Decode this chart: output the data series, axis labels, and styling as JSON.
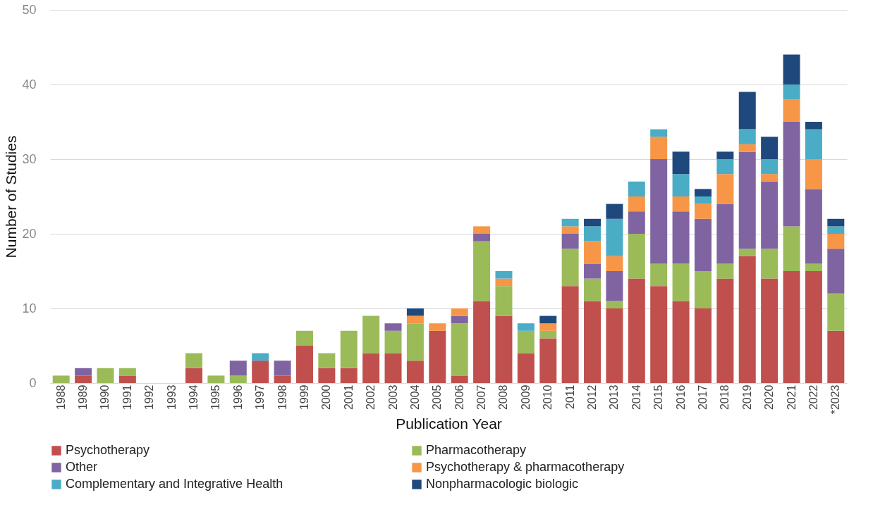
{
  "chart_data": {
    "type": "bar",
    "stacked": true,
    "xlabel": "Publication Year",
    "ylabel": "Number of Studies",
    "categories": [
      "1988",
      "1989",
      "1990",
      "1991",
      "1992",
      "1993",
      "1994",
      "1995",
      "1996",
      "1997",
      "1998",
      "1999",
      "2000",
      "2001",
      "2002",
      "2003",
      "2004",
      "2005",
      "2006",
      "2007",
      "2008",
      "2009",
      "2010",
      "2011",
      "2012",
      "2013",
      "2014",
      "2015",
      "2016",
      "2017",
      "2018",
      "2019",
      "2020",
      "2021",
      "2022",
      "*2023"
    ],
    "series": [
      {
        "name": "Psychotherapy",
        "color": "#c0504d",
        "values": [
          0,
          1,
          0,
          1,
          0,
          0,
          2,
          0,
          0,
          3,
          1,
          5,
          2,
          2,
          4,
          4,
          3,
          7,
          1,
          11,
          9,
          4,
          6,
          13,
          11,
          10,
          14,
          13,
          11,
          10,
          14,
          17,
          14,
          15,
          15,
          7
        ]
      },
      {
        "name": "Pharmacotherapy",
        "color": "#9bbb59",
        "values": [
          1,
          0,
          2,
          1,
          0,
          0,
          2,
          1,
          1,
          0,
          0,
          2,
          2,
          5,
          5,
          3,
          5,
          0,
          7,
          8,
          4,
          3,
          1,
          5,
          3,
          1,
          6,
          3,
          5,
          5,
          2,
          1,
          4,
          6,
          1,
          5
        ]
      },
      {
        "name": "Other",
        "color": "#8064a2",
        "values": [
          0,
          1,
          0,
          0,
          0,
          0,
          0,
          0,
          2,
          0,
          2,
          0,
          0,
          0,
          0,
          1,
          0,
          0,
          1,
          1,
          0,
          0,
          0,
          2,
          2,
          4,
          3,
          14,
          7,
          7,
          8,
          13,
          9,
          14,
          10,
          6
        ]
      },
      {
        "name": "Psychotherapy & pharmacotherapy",
        "color": "#f79646",
        "values": [
          0,
          0,
          0,
          0,
          0,
          0,
          0,
          0,
          0,
          0,
          0,
          0,
          0,
          0,
          0,
          0,
          1,
          1,
          1,
          1,
          1,
          0,
          1,
          1,
          3,
          2,
          2,
          3,
          2,
          2,
          4,
          1,
          1,
          3,
          4,
          2
        ]
      },
      {
        "name": "Complementary and Integrative Health",
        "color": "#4bacc6",
        "values": [
          0,
          0,
          0,
          0,
          0,
          0,
          0,
          0,
          0,
          1,
          0,
          0,
          0,
          0,
          0,
          0,
          0,
          0,
          0,
          0,
          1,
          1,
          0,
          1,
          2,
          5,
          2,
          1,
          3,
          1,
          2,
          2,
          2,
          2,
          4,
          1
        ]
      },
      {
        "name": "Nonpharmacologic biologic",
        "color": "#1f497d",
        "values": [
          0,
          0,
          0,
          0,
          0,
          0,
          0,
          0,
          0,
          0,
          0,
          0,
          0,
          0,
          0,
          0,
          1,
          0,
          0,
          0,
          0,
          0,
          1,
          0,
          1,
          2,
          0,
          0,
          3,
          1,
          1,
          5,
          3,
          4,
          1,
          1
        ]
      }
    ],
    "ylim": [
      0,
      50
    ],
    "yticks": [
      0,
      10,
      20,
      30,
      40,
      50
    ],
    "grid": "y",
    "legend": "bottom"
  }
}
